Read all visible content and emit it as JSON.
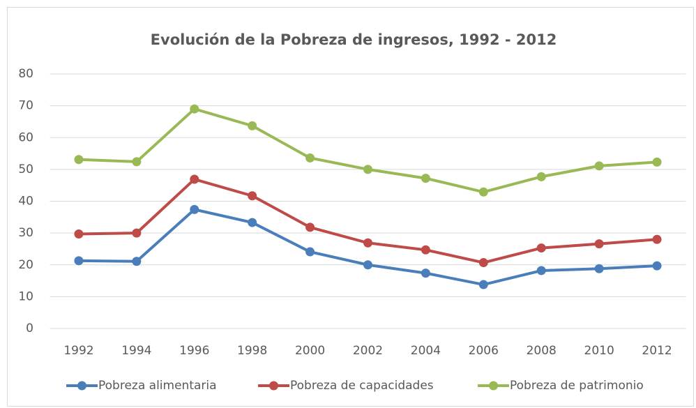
{
  "chart_data": {
    "type": "line",
    "title": "Evolución de la Pobreza de ingresos, 1992 - 2012",
    "categories": [
      "1992",
      "1994",
      "1996",
      "1998",
      "2000",
      "2002",
      "2004",
      "2006",
      "2008",
      "2010",
      "2012"
    ],
    "series": [
      {
        "name": "Pobreza alimentaria",
        "color": "#4a7ebb",
        "values": [
          21.3,
          21.1,
          37.4,
          33.3,
          24.1,
          20.0,
          17.4,
          13.8,
          18.2,
          18.8,
          19.7
        ]
      },
      {
        "name": "Pobreza de capacidades",
        "color": "#be4b48",
        "values": [
          29.7,
          30.0,
          46.9,
          41.7,
          31.8,
          26.9,
          24.7,
          20.7,
          25.3,
          26.6,
          28.0
        ]
      },
      {
        "name": "Pobreza de patrimonio",
        "color": "#98b954",
        "values": [
          53.1,
          52.4,
          69.0,
          63.7,
          53.6,
          50.0,
          47.2,
          42.9,
          47.7,
          51.1,
          52.3
        ]
      }
    ],
    "ylim": [
      0,
      80
    ],
    "yticks": [
      0,
      10,
      20,
      30,
      40,
      50,
      60,
      70,
      80
    ],
    "grid": true,
    "legend": "bottom"
  }
}
